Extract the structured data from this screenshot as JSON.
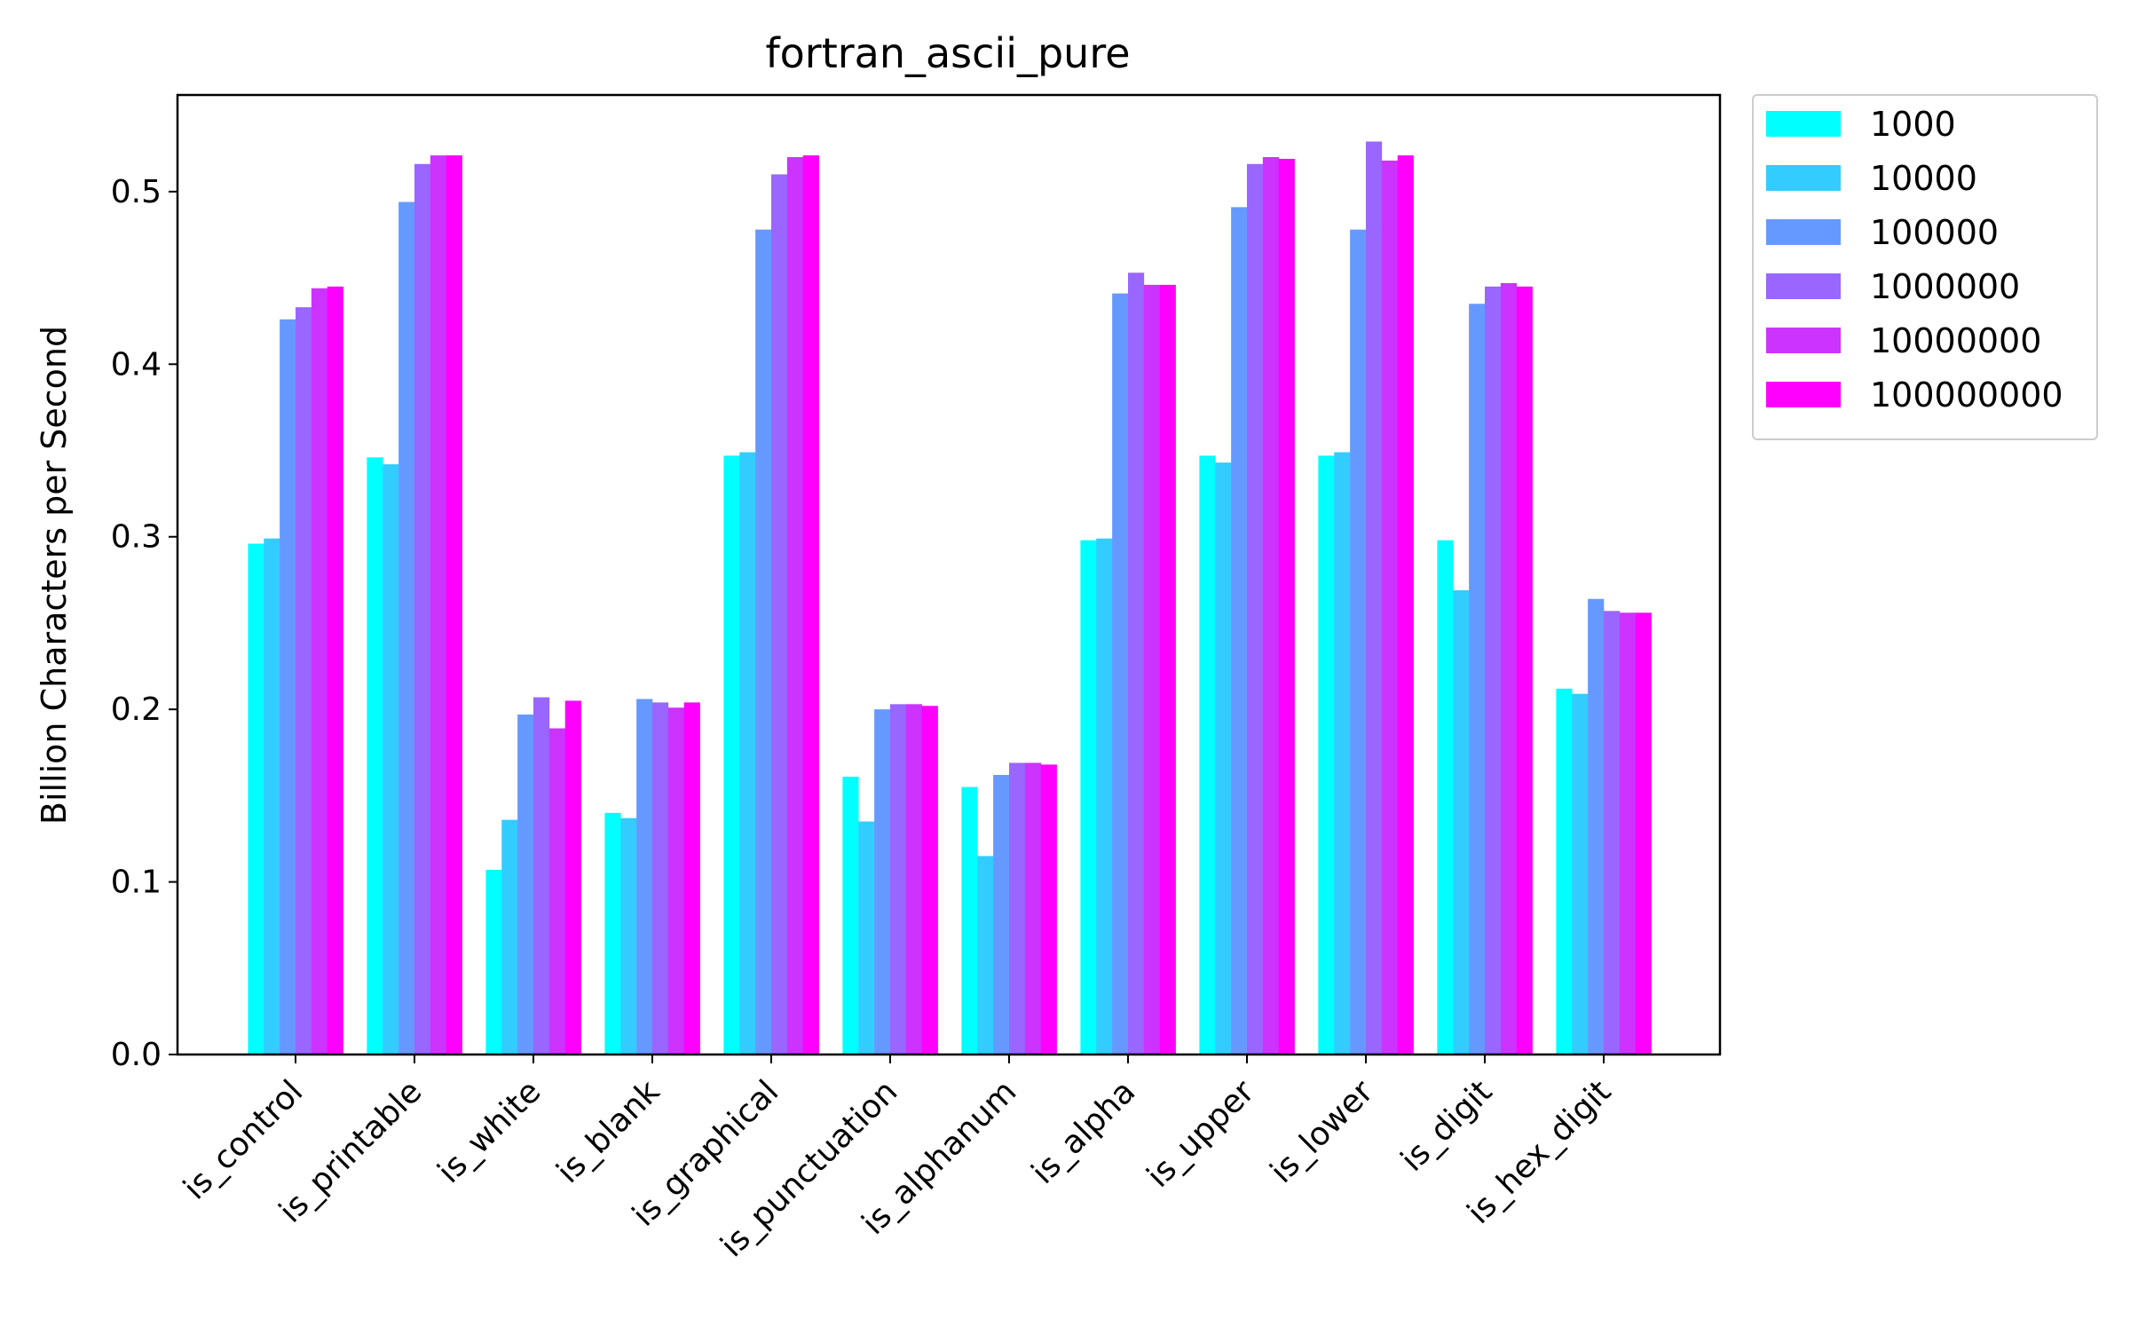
{
  "chart_data": {
    "type": "bar",
    "title": "fortran_ascii_pure",
    "xlabel": "",
    "ylabel": "Billion Characters per Second",
    "ylim": [
      0,
      0.556
    ],
    "yticks": [
      "0.0",
      "0.1",
      "0.2",
      "0.3",
      "0.4",
      "0.5"
    ],
    "grid": false,
    "legend_position": "outside-top-right",
    "categories": [
      "is_control",
      "is_printable",
      "is_white",
      "is_blank",
      "is_graphical",
      "is_punctuation",
      "is_alphanum",
      "is_alpha",
      "is_upper",
      "is_lower",
      "is_digit",
      "is_hex_digit"
    ],
    "series": [
      {
        "name": "1000",
        "color": "#00ffff",
        "values": [
          0.296,
          0.346,
          0.107,
          0.14,
          0.347,
          0.161,
          0.155,
          0.298,
          0.347,
          0.347,
          0.298,
          0.212
        ]
      },
      {
        "name": "10000",
        "color": "#33ccff",
        "values": [
          0.299,
          0.342,
          0.136,
          0.137,
          0.349,
          0.135,
          0.115,
          0.299,
          0.343,
          0.349,
          0.269,
          0.209
        ]
      },
      {
        "name": "100000",
        "color": "#6699ff",
        "values": [
          0.426,
          0.494,
          0.197,
          0.206,
          0.478,
          0.2,
          0.162,
          0.441,
          0.491,
          0.478,
          0.435,
          0.264
        ]
      },
      {
        "name": "1000000",
        "color": "#9966ff",
        "values": [
          0.433,
          0.516,
          0.207,
          0.204,
          0.51,
          0.203,
          0.169,
          0.453,
          0.516,
          0.529,
          0.445,
          0.257
        ]
      },
      {
        "name": "10000000",
        "color": "#cc33ff",
        "values": [
          0.444,
          0.521,
          0.189,
          0.201,
          0.52,
          0.203,
          0.169,
          0.446,
          0.52,
          0.518,
          0.447,
          0.256
        ]
      },
      {
        "name": "100000000",
        "color": "#ff00ff",
        "values": [
          0.445,
          0.521,
          0.205,
          0.204,
          0.521,
          0.202,
          0.168,
          0.446,
          0.519,
          0.521,
          0.445,
          0.256
        ]
      }
    ]
  }
}
